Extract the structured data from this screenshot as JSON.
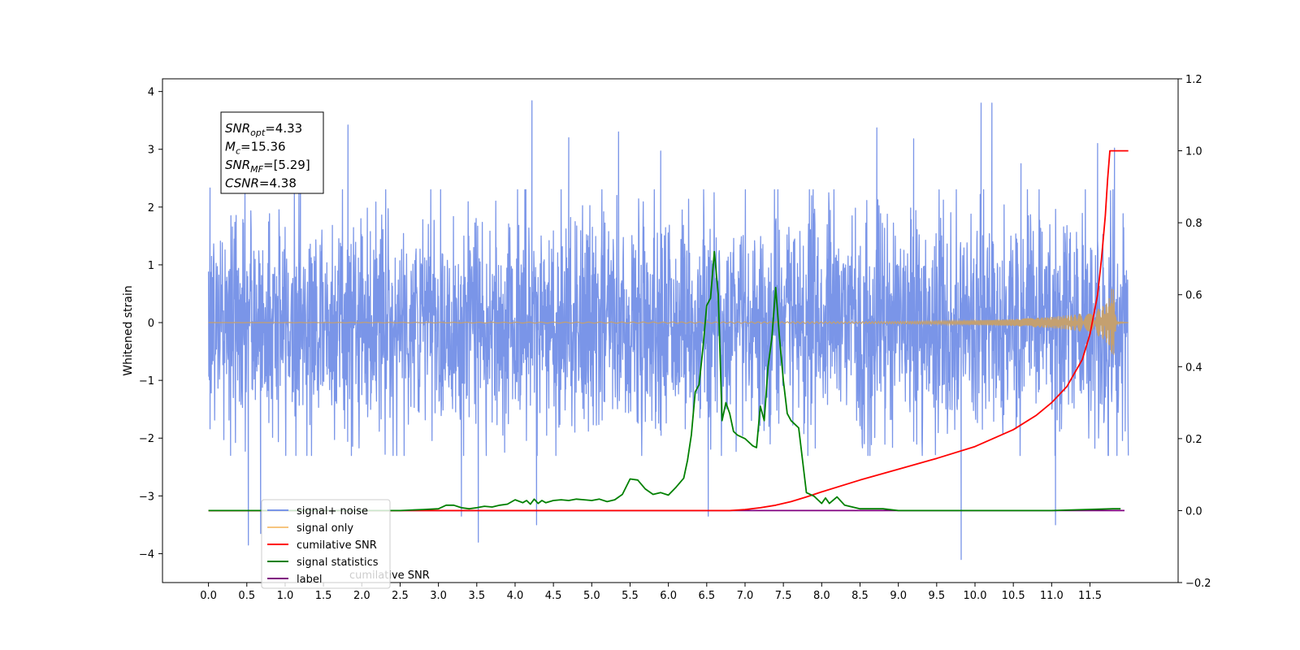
{
  "chart_data": {
    "type": "line",
    "title": "",
    "xlabel": "",
    "ylabel": "Whitened strain",
    "xlim": [
      -0.6,
      12.65
    ],
    "ylim": [
      -4.5,
      4.22
    ],
    "ylim_right": [
      -0.2,
      1.2
    ],
    "grid": false,
    "legend_position": "lower-left",
    "x_ticks": [
      "0.0",
      "0.5",
      "1.0",
      "1.5",
      "2.0",
      "2.5",
      "3.0",
      "3.5",
      "4.0",
      "4.5",
      "5.0",
      "5.5",
      "6.0",
      "6.5",
      "7.0",
      "7.5",
      "8.0",
      "8.5",
      "9.0",
      "9.5",
      "10.0",
      "10.5",
      "11.0",
      "11.5"
    ],
    "y_ticks_left": [
      "4",
      "3",
      "2",
      "1",
      "0",
      "−1",
      "−2",
      "−3",
      "−4"
    ],
    "y_ticks_right": [
      "1.2",
      "1.0",
      "0.8",
      "0.6",
      "0.4",
      "0.2",
      "0.0",
      "−0.2"
    ],
    "annotation": {
      "lines": [
        {
          "base": "SNR",
          "sub": "opt",
          "value": "=4.33"
        },
        {
          "base": "M",
          "sub": "c",
          "value": "=15.36"
        },
        {
          "base": "SNR",
          "sub": "MF",
          "value": "=[5.29]"
        },
        {
          "base": "CSNR",
          "sub": "",
          "value": "=4.38"
        }
      ]
    },
    "legend": [
      {
        "label": "signal+ noise",
        "color": "#7a95e8"
      },
      {
        "label": "signal only",
        "color": "#f6c57f"
      },
      {
        "label": "cumilative SNR",
        "color": "#ff0000"
      },
      {
        "label": "signal statistics",
        "color": "#008000"
      },
      {
        "label": "label",
        "color": "#800080"
      }
    ],
    "overlapped_text": "cumilative SNR",
    "series": [
      {
        "name": "signal+ noise",
        "axis": "left",
        "color": "#7a95e8",
        "x_range": [
          0.0,
          12.0
        ],
        "approx_envelope": [
          1.8,
          -1.8
        ],
        "peaks": [
          {
            "x": 0.02,
            "y": 2.33
          },
          {
            "x": 0.52,
            "y": -3.85
          },
          {
            "x": 0.68,
            "y": -3.65
          },
          {
            "x": 1.2,
            "y": 2.6
          },
          {
            "x": 1.82,
            "y": 3.42
          },
          {
            "x": 3.3,
            "y": -3.35
          },
          {
            "x": 3.52,
            "y": -3.8
          },
          {
            "x": 4.22,
            "y": 3.84
          },
          {
            "x": 4.28,
            "y": -3.5
          },
          {
            "x": 4.7,
            "y": 3.2
          },
          {
            "x": 5.35,
            "y": 3.3
          },
          {
            "x": 5.9,
            "y": 2.97
          },
          {
            "x": 6.52,
            "y": -3.35
          },
          {
            "x": 8.72,
            "y": 3.37
          },
          {
            "x": 9.2,
            "y": 3.18
          },
          {
            "x": 9.82,
            "y": -4.1
          },
          {
            "x": 10.08,
            "y": 3.8
          },
          {
            "x": 10.22,
            "y": 3.8
          },
          {
            "x": 10.6,
            "y": 2.75
          },
          {
            "x": 11.05,
            "y": -3.5
          },
          {
            "x": 11.6,
            "y": 3.1
          },
          {
            "x": 11.82,
            "y": 3.02
          }
        ]
      },
      {
        "name": "signal only",
        "axis": "left",
        "color": "#f6c57f",
        "envelope_x": [
          0.0,
          8.5,
          9.0,
          9.5,
          10.0,
          10.5,
          11.0,
          11.3,
          11.5,
          11.6,
          11.7,
          11.75,
          11.78,
          11.8,
          11.82,
          11.84,
          11.86,
          11.9,
          12.0
        ],
        "envelope_amp": [
          0.0,
          0.015,
          0.02,
          0.03,
          0.04,
          0.06,
          0.1,
          0.14,
          0.19,
          0.23,
          0.32,
          0.42,
          0.55,
          0.8,
          0.35,
          0.08,
          0.02,
          0.01,
          0.0
        ]
      },
      {
        "name": "cumilative SNR",
        "axis": "right",
        "color": "#ff0000",
        "x": [
          0.0,
          6.8,
          7.0,
          7.2,
          7.4,
          7.6,
          7.8,
          8.0,
          8.5,
          9.0,
          9.5,
          10.0,
          10.5,
          10.8,
          11.0,
          11.2,
          11.4,
          11.5,
          11.6,
          11.65,
          11.7,
          11.73,
          11.76,
          11.8,
          12.0
        ],
        "y": [
          0.0,
          0.0,
          0.003,
          0.008,
          0.015,
          0.025,
          0.038,
          0.052,
          0.085,
          0.115,
          0.145,
          0.178,
          0.225,
          0.265,
          0.3,
          0.345,
          0.42,
          0.49,
          0.6,
          0.7,
          0.82,
          0.92,
          1.0,
          1.0,
          1.0
        ]
      },
      {
        "name": "signal statistics",
        "axis": "right",
        "color": "#008000",
        "x": [
          0.0,
          2.0,
          2.5,
          2.8,
          3.0,
          3.1,
          3.2,
          3.3,
          3.4,
          3.5,
          3.6,
          3.7,
          3.8,
          3.9,
          4.0,
          4.1,
          4.15,
          4.2,
          4.25,
          4.3,
          4.35,
          4.4,
          4.5,
          4.6,
          4.7,
          4.8,
          4.9,
          5.0,
          5.1,
          5.2,
          5.3,
          5.4,
          5.5,
          5.6,
          5.7,
          5.8,
          5.9,
          6.0,
          6.1,
          6.2,
          6.25,
          6.3,
          6.35,
          6.4,
          6.45,
          6.5,
          6.55,
          6.6,
          6.65,
          6.7,
          6.75,
          6.8,
          6.85,
          6.9,
          7.0,
          7.1,
          7.15,
          7.2,
          7.25,
          7.3,
          7.35,
          7.4,
          7.45,
          7.5,
          7.55,
          7.6,
          7.7,
          7.8,
          7.9,
          8.0,
          8.05,
          8.1,
          8.2,
          8.3,
          8.4,
          8.5,
          8.6,
          8.8,
          9.0,
          10.0,
          11.0,
          11.8,
          11.9
        ],
        "y": [
          0.0,
          0.0,
          0.0,
          0.003,
          0.005,
          0.015,
          0.015,
          0.008,
          0.005,
          0.008,
          0.012,
          0.01,
          0.015,
          0.018,
          0.03,
          0.022,
          0.028,
          0.018,
          0.032,
          0.02,
          0.028,
          0.022,
          0.028,
          0.03,
          0.028,
          0.032,
          0.03,
          0.028,
          0.032,
          0.025,
          0.03,
          0.045,
          0.088,
          0.085,
          0.06,
          0.045,
          0.05,
          0.043,
          0.065,
          0.09,
          0.14,
          0.21,
          0.33,
          0.35,
          0.45,
          0.57,
          0.59,
          0.72,
          0.6,
          0.25,
          0.3,
          0.27,
          0.22,
          0.21,
          0.2,
          0.18,
          0.175,
          0.29,
          0.25,
          0.4,
          0.48,
          0.62,
          0.48,
          0.36,
          0.27,
          0.25,
          0.23,
          0.05,
          0.04,
          0.02,
          0.035,
          0.02,
          0.038,
          0.015,
          0.01,
          0.005,
          0.005,
          0.005,
          0.0,
          0.0,
          0.0,
          0.005,
          0.005
        ]
      },
      {
        "name": "label",
        "axis": "right",
        "color": "#800080",
        "x": [
          0.0,
          11.95
        ],
        "y": [
          0.0,
          0.0
        ]
      }
    ]
  }
}
